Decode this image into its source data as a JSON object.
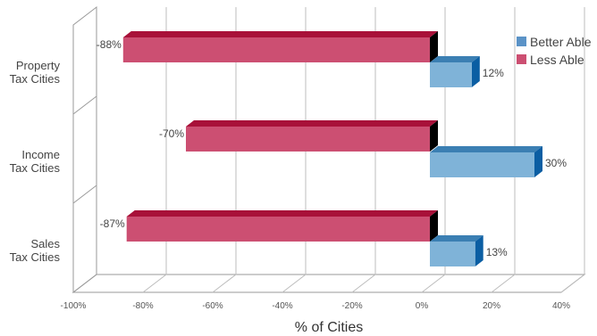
{
  "chart_data": {
    "type": "bar",
    "orientation": "horizontal",
    "style": "3d-clustered",
    "categories": [
      [
        "Property",
        "Tax Cities"
      ],
      [
        "Income",
        "Tax Cities"
      ],
      [
        "Sales",
        "Tax Cities"
      ]
    ],
    "series": [
      {
        "name": "Better Able",
        "values": [
          12,
          30,
          13
        ],
        "labels": [
          "12%",
          "30%",
          "13%"
        ],
        "color": "#7fb3d8",
        "color_top": "#3b7fb3",
        "color_side": "#0b5ea3"
      },
      {
        "name": "Less Able",
        "values": [
          -88,
          -70,
          -87
        ],
        "labels": [
          "-88%",
          "-70%",
          "-87%"
        ],
        "color": "#cc4f72",
        "color_top": "#a81139",
        "color_side": "#000000"
      }
    ],
    "xlabel": "% of Cities",
    "xlim": [
      -100,
      40
    ],
    "xticks": [
      "-100%",
      "-80%",
      "-60%",
      "-40%",
      "-20%",
      "0%",
      "20%",
      "40%"
    ],
    "grid": true,
    "legend": "top-right"
  }
}
